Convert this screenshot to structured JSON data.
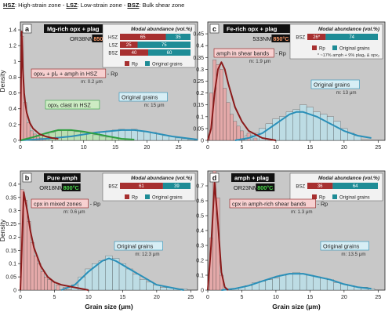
{
  "legend": {
    "hsz_abbr": "HSZ",
    "hsz_text": ": High-strain zone - ",
    "lsz_abbr": "LSZ",
    "lsz_text": ": Low-strain zone - ",
    "bsz_abbr": "BSZ",
    "bsz_text": ": Bulk shear zone"
  },
  "colors": {
    "panel_bg": "#c8c8c8",
    "rp_fill": "#e8a6a6",
    "rp_line": "#8b1a1a",
    "orig_fill": "#bcdfe8",
    "orig_line": "#2a8fb8",
    "secondary_line": "#2ea040",
    "secondary_fill": "#b9e2b0",
    "rp_bar": "#a73030",
    "orig_bar": "#1e8c96",
    "temp_bg": "#cc2a1a",
    "temp_text_a": "#ff9c6a",
    "temp_text_b": "#4ddb4d"
  },
  "chart_data": [
    {
      "id": "a",
      "type": "bar",
      "xlabel": "",
      "ylabel": "Density",
      "xlim": [
        0,
        28
      ],
      "ylim": [
        0,
        1.5
      ],
      "xticks": [
        0,
        5,
        10,
        15,
        20,
        25
      ],
      "yticks": [
        "0",
        "0.2",
        "0.4",
        "0.6",
        "0.8",
        "1",
        "1.2",
        "1.4"
      ],
      "title_box": "Mg-rich opx + plag",
      "sample": "OR38NM",
      "temp": "850°C",
      "modal_title": "Modal abundance (vol.%)",
      "modal_rows": [
        {
          "label": "HSZ",
          "rp": 65,
          "orig": 35
        },
        {
          "label": "LSZ",
          "rp": 25,
          "orig": 75
        },
        {
          "label": "BSZ",
          "rp": 40,
          "orig": 60
        }
      ],
      "legend_rp": "Rp",
      "legend_orig": "Original grains",
      "annotations": [
        {
          "text": "opx₂ + pl₂ + amph in HSZ",
          "suffix": "- Rp",
          "m": "m: 0.2 μm",
          "style": "rp"
        },
        {
          "text": "opx₁ clast in HSZ",
          "suffix": "",
          "m": "",
          "style": "green"
        },
        {
          "text": "Original grains",
          "suffix": "",
          "m": "m: 15 μm",
          "style": "orig"
        }
      ],
      "rp_hist": {
        "x": [
          0.25,
          0.75,
          1.25,
          1.75,
          2.25,
          2.75,
          3.25,
          3.75
        ],
        "y": [
          1.32,
          0.48,
          0.22,
          0.12,
          0.08,
          0.05,
          0.03,
          0.02
        ]
      },
      "sec_hist": {
        "x": [
          1,
          2,
          3,
          4,
          5,
          6,
          7,
          8,
          9,
          10,
          11,
          12,
          13,
          14,
          15,
          16,
          17
        ],
        "y": [
          0.02,
          0.04,
          0.06,
          0.08,
          0.1,
          0.12,
          0.13,
          0.12,
          0.11,
          0.1,
          0.09,
          0.07,
          0.05,
          0.04,
          0.03,
          0.02,
          0.01
        ]
      },
      "orig_hist": {
        "x": [
          3,
          4,
          5,
          6,
          7,
          8,
          9,
          10,
          11,
          12,
          13,
          14,
          15,
          16,
          17,
          18,
          19,
          20,
          21,
          22,
          23,
          24,
          25,
          26,
          27
        ],
        "y": [
          0.01,
          0.02,
          0.03,
          0.04,
          0.05,
          0.06,
          0.07,
          0.08,
          0.09,
          0.1,
          0.11,
          0.12,
          0.13,
          0.14,
          0.13,
          0.14,
          0.12,
          0.11,
          0.1,
          0.08,
          0.06,
          0.05,
          0.03,
          0.02,
          0.01
        ]
      },
      "rp_curve": {
        "x": [
          0,
          0.2,
          0.4,
          0.6,
          0.8,
          1,
          1.5,
          2,
          3,
          4,
          5,
          6
        ],
        "y": [
          0,
          1.38,
          0.9,
          0.6,
          0.45,
          0.35,
          0.22,
          0.15,
          0.08,
          0.05,
          0.03,
          0.02
        ]
      },
      "sec_curve": {
        "x": [
          0,
          2,
          4,
          6,
          8,
          10,
          12,
          14,
          16,
          18
        ],
        "y": [
          0,
          0.04,
          0.09,
          0.13,
          0.13,
          0.11,
          0.08,
          0.05,
          0.02,
          0.01
        ]
      },
      "orig_curve": {
        "x": [
          0,
          4,
          8,
          12,
          16,
          18,
          20,
          24,
          28
        ],
        "y": [
          0,
          0.02,
          0.05,
          0.1,
          0.13,
          0.13,
          0.11,
          0.05,
          0.01
        ]
      }
    },
    {
      "id": "b",
      "type": "bar",
      "xlabel": "Grain size (μm)",
      "ylabel": "Density",
      "xlim": [
        0,
        26
      ],
      "ylim": [
        0,
        0.45
      ],
      "xticks": [
        0,
        5,
        10,
        15,
        20,
        25
      ],
      "yticks": [
        "0",
        "0.05",
        "0.1",
        "0.15",
        "0.2",
        "0.25",
        "0.3",
        "0.35",
        "0.4"
      ],
      "title_box": "Pure amph",
      "sample": "OR18NM",
      "temp": "800°C",
      "modal_title": "Modal abundance (vol.%)",
      "modal_rows": [
        {
          "label": "BSZ",
          "rp": 61,
          "orig": 39
        }
      ],
      "legend_rp": "Rp",
      "legend_orig": "Original grains",
      "annotations": [
        {
          "text": "cpx in mixed zones",
          "suffix": "- Rp",
          "m": "m: 0.6 μm",
          "style": "rp"
        },
        {
          "text": "Original grains",
          "suffix": "",
          "m": "m: 12.3 μm",
          "style": "orig"
        }
      ],
      "rp_hist": {
        "x": [
          0.25,
          0.75,
          1.25,
          1.75,
          2.25,
          2.75,
          3.25,
          3.75,
          4.25,
          4.75,
          5.5,
          6.5
        ],
        "y": [
          0.38,
          0.34,
          0.26,
          0.18,
          0.13,
          0.1,
          0.07,
          0.05,
          0.04,
          0.03,
          0.02,
          0.01
        ]
      },
      "orig_hist": {
        "x": [
          8,
          9,
          10,
          11,
          12,
          13,
          14,
          15,
          16,
          17,
          18,
          19,
          20,
          21,
          22,
          23,
          24
        ],
        "y": [
          0.02,
          0.05,
          0.08,
          0.1,
          0.11,
          0.13,
          0.12,
          0.1,
          0.08,
          0.06,
          0.04,
          0.03,
          0.02,
          0.01,
          0.01,
          0.005,
          0.005
        ]
      },
      "rp_curve": {
        "x": [
          0,
          0.5,
          1,
          1.5,
          2,
          3,
          4,
          5,
          6,
          8,
          10
        ],
        "y": [
          0,
          0.37,
          0.3,
          0.22,
          0.16,
          0.09,
          0.05,
          0.03,
          0.02,
          0.01,
          0
        ]
      },
      "orig_curve": {
        "x": [
          6,
          8,
          10,
          12,
          13,
          14,
          16,
          18,
          20,
          22,
          24
        ],
        "y": [
          0,
          0.02,
          0.07,
          0.11,
          0.12,
          0.11,
          0.08,
          0.05,
          0.02,
          0.01,
          0
        ]
      }
    },
    {
      "id": "c",
      "type": "bar",
      "xlabel": "",
      "ylabel": "",
      "xlim": [
        0,
        26
      ],
      "ylim": [
        0,
        0.5
      ],
      "xticks": [
        0,
        5,
        10,
        15,
        20,
        25
      ],
      "yticks": [
        "0",
        "0.05",
        "0.1",
        "0.15",
        "0.2",
        "0.25",
        "0.3",
        "0.35",
        "0.4",
        "0.45"
      ],
      "title_box": "Fe-rich opx + plag",
      "sample": "533NM",
      "temp": "850°C",
      "modal_title": "Modal abundance (vol.%)",
      "modal_rows": [
        {
          "label": "BSZ",
          "rp": 26,
          "orig": 74,
          "rp_label": "26*"
        }
      ],
      "legend_rp": "Rp",
      "legend_orig": "Original grains",
      "footnote": "* ~17% amph + 9% plag₂ & opx₂",
      "annotations": [
        {
          "text": "amph in shear bands",
          "suffix": "- Rp",
          "m": "m: 1.9 μm",
          "style": "rp"
        },
        {
          "text": "Original grains",
          "suffix": "",
          "m": "m: 13 μm",
          "style": "orig"
        }
      ],
      "rp_hist": {
        "x": [
          0.5,
          1,
          1.5,
          2,
          2.5,
          3,
          3.5,
          4,
          4.5,
          5,
          6,
          7
        ],
        "y": [
          0.2,
          0.34,
          0.32,
          0.3,
          0.22,
          0.16,
          0.11,
          0.08,
          0.06,
          0.04,
          0.03,
          0.01
        ]
      },
      "orig_hist": {
        "x": [
          6,
          7,
          8,
          9,
          10,
          11,
          12,
          13,
          14,
          15,
          16,
          17,
          18,
          19,
          20,
          21,
          22
        ],
        "y": [
          0.02,
          0.03,
          0.05,
          0.07,
          0.09,
          0.1,
          0.12,
          0.13,
          0.15,
          0.14,
          0.12,
          0.11,
          0.1,
          0.08,
          0.05,
          0.03,
          0.02
        ]
      },
      "rp_curve": {
        "x": [
          0,
          0.5,
          1,
          1.5,
          2,
          2.5,
          3,
          4,
          5,
          6,
          8,
          10
        ],
        "y": [
          0,
          0.05,
          0.2,
          0.3,
          0.33,
          0.3,
          0.24,
          0.14,
          0.08,
          0.04,
          0.01,
          0
        ]
      },
      "orig_curve": {
        "x": [
          4,
          6,
          8,
          10,
          12,
          13,
          14,
          16,
          18,
          20,
          22,
          24
        ],
        "y": [
          0,
          0.01,
          0.03,
          0.07,
          0.11,
          0.12,
          0.12,
          0.1,
          0.07,
          0.04,
          0.02,
          0.01
        ]
      }
    },
    {
      "id": "d",
      "type": "bar",
      "xlabel": "Grain size (μm)",
      "ylabel": "",
      "xlim": [
        0,
        26
      ],
      "ylim": [
        0,
        0.8
      ],
      "xticks": [
        0,
        5,
        10,
        15,
        20,
        25
      ],
      "yticks": [
        "0",
        "0.1",
        "0.2",
        "0.3",
        "0.4",
        "0.5",
        "0.6",
        "0.7"
      ],
      "title_box": "amph + plag",
      "sample": "OR23NM",
      "temp": "800°C",
      "modal_title": "Modal abundance (vol.%)",
      "modal_rows": [
        {
          "label": "BSZ",
          "rp": 36,
          "orig": 64
        }
      ],
      "legend_rp": "Rp",
      "legend_orig": "Original grains",
      "annotations": [
        {
          "text": "cpx in amph-rich shear bands",
          "suffix": "- Rp",
          "m": "m: 1.3 μm",
          "style": "rp"
        },
        {
          "text": "Original grains",
          "suffix": "",
          "m": "m: 13.5 μm",
          "style": "orig"
        }
      ],
      "rp_hist": {
        "x": [
          0.5,
          1,
          1.5,
          2
        ],
        "y": [
          0.35,
          0.8,
          0.62,
          0.1
        ]
      },
      "orig_hist": {
        "x": [
          4,
          5,
          6,
          7,
          8,
          9,
          10,
          11,
          12,
          13,
          14,
          15,
          16,
          17,
          18,
          19,
          20,
          21,
          22,
          23,
          24
        ],
        "y": [
          0.01,
          0.02,
          0.03,
          0.05,
          0.06,
          0.07,
          0.08,
          0.1,
          0.11,
          0.12,
          0.11,
          0.1,
          0.09,
          0.08,
          0.07,
          0.05,
          0.04,
          0.03,
          0.02,
          0.02,
          0.01
        ]
      },
      "rp_curve": {
        "x": [
          0,
          0.5,
          1,
          1.5,
          2,
          2.5,
          3
        ],
        "y": [
          0,
          0.3,
          0.72,
          0.45,
          0.12,
          0.02,
          0
        ]
      },
      "orig_curve": {
        "x": [
          2,
          4,
          6,
          8,
          10,
          12,
          14,
          16,
          18,
          20,
          22,
          24
        ],
        "y": [
          0,
          0.01,
          0.03,
          0.06,
          0.09,
          0.11,
          0.11,
          0.09,
          0.07,
          0.04,
          0.02,
          0.01
        ]
      }
    }
  ]
}
